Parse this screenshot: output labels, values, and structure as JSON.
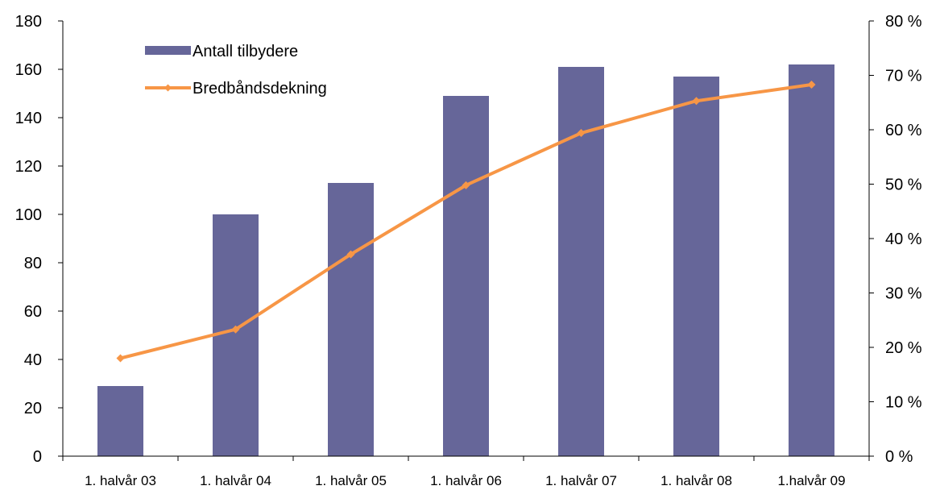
{
  "chart_data": {
    "type": "bar",
    "categories": [
      "1. halvår 03",
      "1. halvår 04",
      "1. halvår 05",
      "1. halvår 06",
      "1. halvår 07",
      "1. halvår 08",
      "1.halvår 09"
    ],
    "series": [
      {
        "name": "Antall tilbydere",
        "type": "bar",
        "axis": "left",
        "color": "#666699",
        "values": [
          29,
          100,
          113,
          149,
          161,
          157,
          162
        ]
      },
      {
        "name": "Bredbåndsdekning",
        "type": "line",
        "axis": "right",
        "color": "#f79646",
        "values": [
          18,
          23.3,
          37.1,
          49.8,
          59.4,
          65.3,
          68.3
        ]
      }
    ],
    "y_left": {
      "range": [
        0,
        180
      ],
      "ticks": [
        "0",
        "20",
        "40",
        "60",
        "80",
        "100",
        "120",
        "140",
        "160",
        "180"
      ]
    },
    "y_right": {
      "range": [
        0,
        80
      ],
      "ticks": [
        "0 %",
        "10 %",
        "20 %",
        "30 %",
        "40 %",
        "50 %",
        "60 %",
        "70 %",
        "80 %"
      ]
    },
    "grid": false,
    "legend_position": "top-left"
  }
}
